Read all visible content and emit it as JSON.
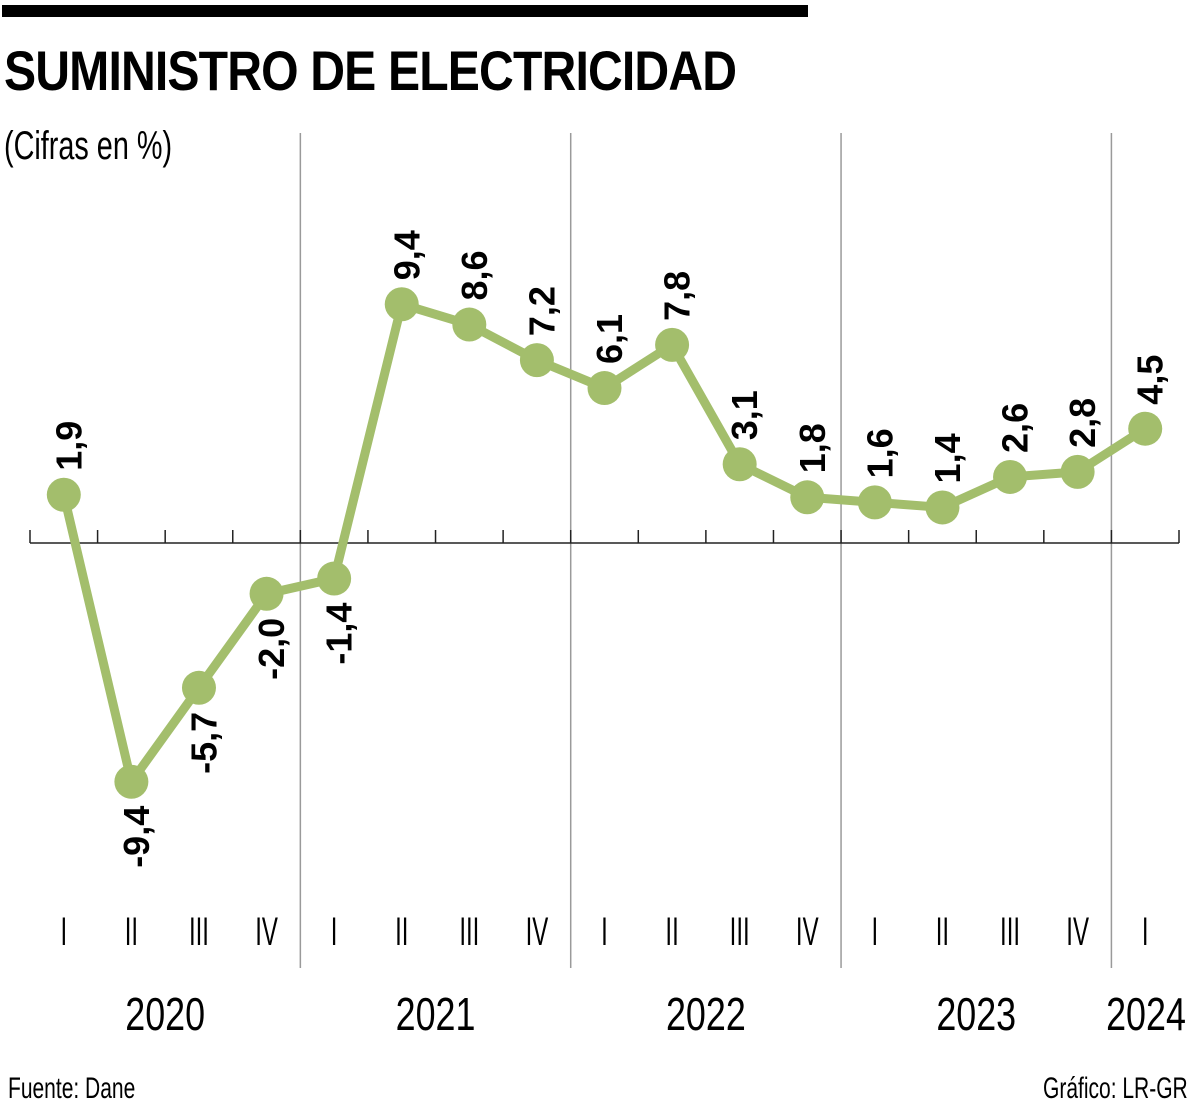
{
  "header": {
    "title": "SUMINISTRO DE ELECTRICIDAD",
    "subtitle": "(Cifras en %)"
  },
  "footer": {
    "source": "Fuente: Dane",
    "credit": "Gráfico: LR-GR"
  },
  "colors": {
    "series": "#a3be6c",
    "axis": "#222222",
    "year_separator": "#9a9a9a",
    "text": "#000000"
  },
  "chart_data": {
    "type": "line",
    "title": "SUMINISTRO DE ELECTRICIDAD",
    "subtitle": "(Cifras en %)",
    "xlabel": "",
    "ylabel": "",
    "ylim": [
      -9.4,
      9.4
    ],
    "grid": false,
    "legend": "none",
    "years": [
      {
        "label": "2020",
        "quarters": 4
      },
      {
        "label": "2021",
        "quarters": 4
      },
      {
        "label": "2022",
        "quarters": 4
      },
      {
        "label": "2023",
        "quarters": 4
      },
      {
        "label": "2024",
        "quarters": 1
      }
    ],
    "categories": [
      "I",
      "II",
      "III",
      "IV",
      "I",
      "II",
      "III",
      "IV",
      "I",
      "II",
      "III",
      "IV",
      "I",
      "II",
      "III",
      "IV",
      "I"
    ],
    "series": [
      {
        "name": "Suministro de electricidad",
        "values": [
          1.9,
          -9.4,
          -5.7,
          -2.0,
          -1.4,
          9.4,
          8.6,
          7.2,
          6.1,
          7.8,
          3.1,
          1.8,
          1.6,
          1.4,
          2.6,
          2.8,
          4.5
        ],
        "labels": [
          "1,9",
          "-9,4",
          "-5,7",
          "-2,0",
          "-1,4",
          "9,4",
          "8,6",
          "7,2",
          "6,1",
          "7,8",
          "3,1",
          "1,8",
          "1,6",
          "1,4",
          "2,6",
          "2,8",
          "4,5"
        ]
      }
    ]
  }
}
